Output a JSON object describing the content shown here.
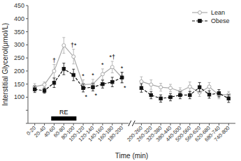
{
  "chart_data": {
    "type": "line",
    "xlabel": "Time (min)",
    "ylabel": "Interstitial Glycerol(μmol/L)",
    "categories": [
      "0-20",
      "20-40",
      "40-60",
      "60-80",
      "80-100",
      "100-120",
      "120-140",
      "140-160",
      "160-180",
      "180-200",
      null,
      "200-260",
      "260-320",
      "320-380",
      "380-440",
      "440-500",
      "500-560",
      "560-620",
      "620-680",
      "680-740",
      "740-800"
    ],
    "series": [
      {
        "name": "Lean",
        "color": "#aaaaaa",
        "marker": "circle",
        "line_style": "solid",
        "values": [
          140,
          148,
          200,
          298,
          255,
          148,
          150,
          188,
          215,
          175,
          null,
          160,
          148,
          138,
          135,
          122,
          140,
          118,
          140,
          108,
          110
        ],
        "errors": [
          12,
          10,
          25,
          30,
          28,
          18,
          18,
          20,
          22,
          20,
          null,
          18,
          18,
          15,
          14,
          14,
          18,
          15,
          16,
          14,
          12
        ]
      },
      {
        "name": "Obese",
        "color": "#111111",
        "marker": "square",
        "line_style": "dashed",
        "values": [
          130,
          125,
          155,
          208,
          185,
          135,
          138,
          150,
          158,
          175,
          null,
          135,
          108,
          95,
          100,
          108,
          108,
          138,
          110,
          115,
          95
        ],
        "errors": [
          12,
          10,
          18,
          22,
          22,
          15,
          14,
          15,
          18,
          20,
          null,
          16,
          14,
          14,
          14,
          14,
          14,
          18,
          14,
          14,
          15
        ]
      }
    ],
    "ylim": [
      0,
      450
    ],
    "yticks": [
      {
        "value": 0,
        "label": null
      },
      {
        "value": 50,
        "label": null
      },
      100,
      150,
      200,
      250,
      300,
      350,
      400,
      450
    ],
    "annotations": [
      {
        "text": "†",
        "series": "Lean",
        "category": "40-60",
        "position": "above"
      },
      {
        "text": "†*",
        "series": "Lean",
        "category": "80-100",
        "position": "above"
      },
      {
        "text": "*",
        "series": "Lean",
        "category": "100-120",
        "position": "above"
      },
      {
        "text": "*",
        "series": "Lean",
        "category": "120-140",
        "position": "above"
      },
      {
        "text": "*",
        "series": "Lean",
        "category": "140-160",
        "position": "above"
      },
      {
        "text": "*†",
        "series": "Lean",
        "category": "160-180",
        "position": "above"
      },
      {
        "text": "*",
        "series": "Lean",
        "category": "180-200",
        "position": "above"
      },
      {
        "text": "*",
        "series": "Obese",
        "category": "100-120",
        "position": "below"
      },
      {
        "text": "*",
        "series": "Obese",
        "category": "120-140",
        "position": "below"
      },
      {
        "text": "*",
        "series": "Obese",
        "category": "180-200",
        "position": "below"
      },
      {
        "text": "RE",
        "from": "40-60",
        "to": "80-100"
      }
    ],
    "legend": "upper right",
    "grid": false
  }
}
